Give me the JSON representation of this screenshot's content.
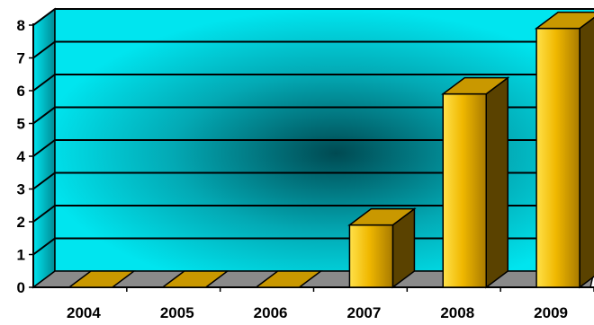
{
  "chart_data": {
    "type": "bar",
    "style": "3d-column",
    "categories": [
      "2004",
      "2005",
      "2006",
      "2007",
      "2008",
      "2009"
    ],
    "values": [
      0,
      0,
      0,
      1.9,
      5.9,
      7.9
    ],
    "y_ticks": [
      "0",
      "1",
      "2",
      "3",
      "4",
      "5",
      "6",
      "7",
      "8"
    ],
    "ylim": [
      0,
      8
    ],
    "grid": true,
    "legend": "none",
    "title": "",
    "xlabel": "",
    "ylabel": "",
    "colors": {
      "wall": "#00e5ef",
      "wall_shadow": "#004a52",
      "floor": "#8a8a8a",
      "bar_front_light": "#ffe14a",
      "bar_front_mid": "#f0b800",
      "bar_front_dark": "#a87a00",
      "bar_side": "#5a4200",
      "bar_top": "#c99800",
      "gridline": "#000000"
    }
  }
}
